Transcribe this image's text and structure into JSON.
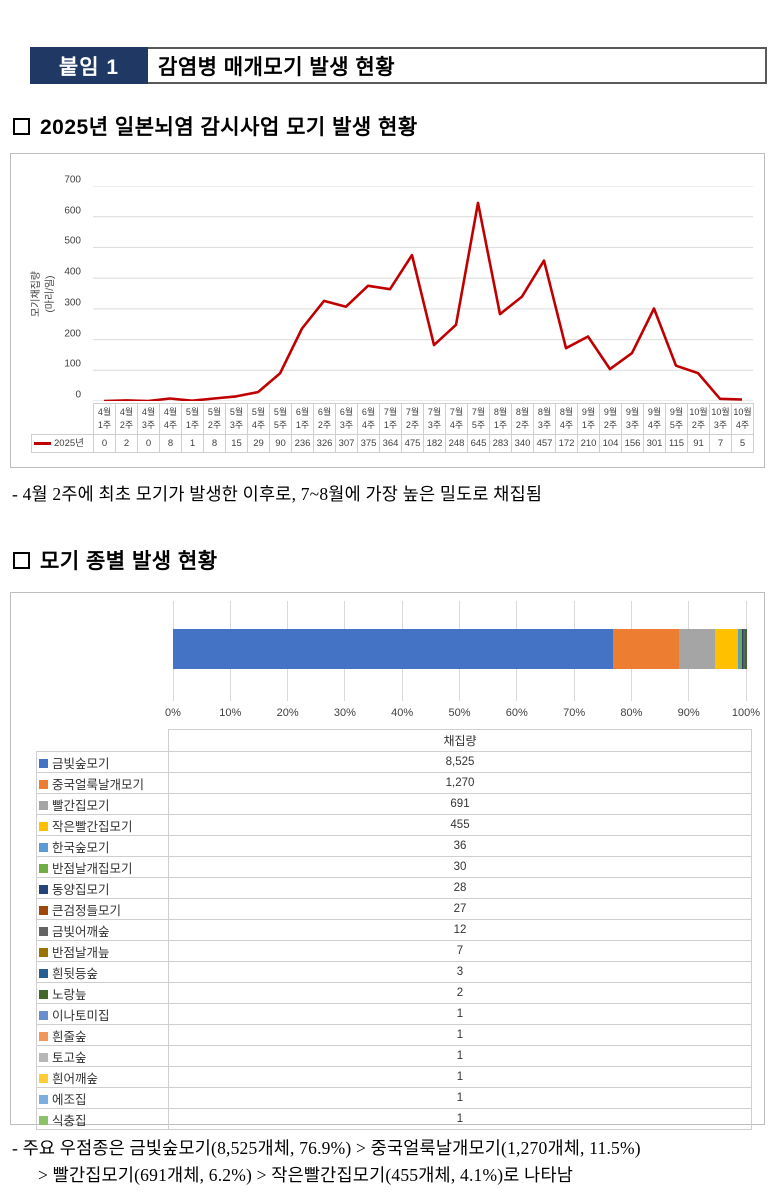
{
  "header": {
    "badge": "붙임 1",
    "title": "감염병 매개모기 발생 현황"
  },
  "sections": {
    "s1_heading": "2025년 일본뇌염 감시사업 모기 발생 현황",
    "s2_heading": "모기 종별 발생 현황"
  },
  "notes": {
    "note1": "- 4월 2주에 최초 모기가 발생한 이후로, 7~8월에 가장 높은 밀도로 채집됨",
    "note2_line1": "- 주요 우점종은 금빛숲모기(8,525개체, 76.9%) > 중국얼룩날개모기(1,270개체, 11.5%)",
    "note2_line2": "> 빨간집모기(691개체, 6.2%) > 작은빨간집모기(455개체, 4.1%)로 나타남"
  },
  "chart_data": [
    {
      "id": "weekly-line-chart",
      "type": "line",
      "ylabel_line1": "모기채집량",
      "ylabel_line2": "(마리/일)",
      "series_name": "2025년",
      "line_color": "#C00000",
      "ylim": [
        0,
        700
      ],
      "ytick_step": 100,
      "grid": "horizontal",
      "legend_position": "data-table-left",
      "categories_month": [
        "4월",
        "4월",
        "4월",
        "4월",
        "5월",
        "5월",
        "5월",
        "5월",
        "5월",
        "6월",
        "6월",
        "6월",
        "6월",
        "7월",
        "7월",
        "7월",
        "7월",
        "7월",
        "8월",
        "8월",
        "8월",
        "8월",
        "9월",
        "9월",
        "9월",
        "9월",
        "9월",
        "10월",
        "10월",
        "10월"
      ],
      "categories_week": [
        "1주",
        "2주",
        "3주",
        "4주",
        "1주",
        "2주",
        "3주",
        "4주",
        "5주",
        "1주",
        "2주",
        "3주",
        "4주",
        "1주",
        "2주",
        "3주",
        "4주",
        "5주",
        "1주",
        "2주",
        "3주",
        "4주",
        "1주",
        "2주",
        "3주",
        "4주",
        "5주",
        "2주",
        "3주",
        "4주"
      ],
      "values": [
        0,
        2,
        0,
        8,
        1,
        8,
        15,
        29,
        90,
        236,
        326,
        307,
        375,
        364,
        475,
        182,
        248,
        645,
        283,
        340,
        457,
        172,
        210,
        104,
        156,
        301,
        115,
        91,
        7,
        5
      ]
    },
    {
      "id": "species-stacked-bar",
      "type": "bar",
      "subtype": "stacked-100",
      "column_header": "채집량",
      "xlim": [
        0,
        100
      ],
      "xticks": [
        "0%",
        "10%",
        "20%",
        "30%",
        "40%",
        "50%",
        "60%",
        "70%",
        "80%",
        "90%",
        "100%"
      ],
      "grid": "vertical",
      "series": [
        {
          "name": "금빛숲모기",
          "value": 8525,
          "display": "8,525",
          "color": "#4472C4"
        },
        {
          "name": "중국얼룩날개모기",
          "value": 1270,
          "display": "1,270",
          "color": "#ED7D31"
        },
        {
          "name": "빨간집모기",
          "value": 691,
          "display": "691",
          "color": "#A5A5A5"
        },
        {
          "name": "작은빨간집모기",
          "value": 455,
          "display": "455",
          "color": "#FFC000"
        },
        {
          "name": "한국숲모기",
          "value": 36,
          "display": "36",
          "color": "#5B9BD5"
        },
        {
          "name": "반점날개집모기",
          "value": 30,
          "display": "30",
          "color": "#70AD47"
        },
        {
          "name": "동양집모기",
          "value": 28,
          "display": "28",
          "color": "#264478"
        },
        {
          "name": "큰검정들모기",
          "value": 27,
          "display": "27",
          "color": "#9E480E"
        },
        {
          "name": "금빛어깨숲",
          "value": 12,
          "display": "12",
          "color": "#636363"
        },
        {
          "name": "반점날개늪",
          "value": 7,
          "display": "7",
          "color": "#997300"
        },
        {
          "name": "흰뒷등숲",
          "value": 3,
          "display": "3",
          "color": "#255E91"
        },
        {
          "name": "노랑늪",
          "value": 2,
          "display": "2",
          "color": "#43682B"
        },
        {
          "name": "이나토미집",
          "value": 1,
          "display": "1",
          "color": "#698ED0"
        },
        {
          "name": "흰줄숲",
          "value": 1,
          "display": "1",
          "color": "#F1975A"
        },
        {
          "name": "토고숲",
          "value": 1,
          "display": "1",
          "color": "#B7B7B7"
        },
        {
          "name": "흰어깨숲",
          "value": 1,
          "display": "1",
          "color": "#FFCD33"
        },
        {
          "name": "에조집",
          "value": 1,
          "display": "1",
          "color": "#7CAFDD"
        },
        {
          "name": "식충집",
          "value": 1,
          "display": "1",
          "color": "#8CC168"
        }
      ]
    }
  ],
  "colors": {
    "badge_bg": "#1F3864",
    "line_red": "#C00000",
    "gridline": "#D9D9D9",
    "table_border": "#D0CECE",
    "tick_text": "#404040"
  }
}
